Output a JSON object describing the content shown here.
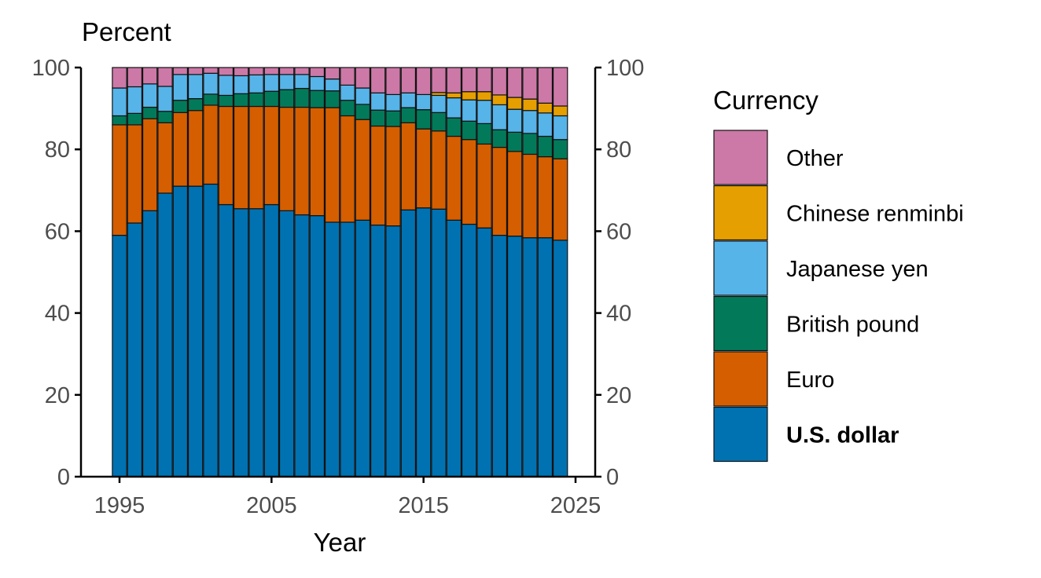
{
  "chart_data": {
    "type": "bar",
    "stacked": true,
    "title": "",
    "xlabel": "Year",
    "ylabel": "Percent",
    "ylim": [
      0,
      100
    ],
    "xlim": [
      1993,
      2027
    ],
    "x_ticks": [
      1995,
      2005,
      2015,
      2025
    ],
    "y_ticks": [
      0,
      20,
      40,
      60,
      80,
      100
    ],
    "secondary_y_axis": true,
    "grid": false,
    "legend": {
      "title": "Currency",
      "placement": "right"
    },
    "categories": [
      1995,
      1996,
      1997,
      1998,
      1999,
      2000,
      2001,
      2002,
      2003,
      2004,
      2005,
      2006,
      2007,
      2008,
      2009,
      2010,
      2011,
      2012,
      2013,
      2014,
      2015,
      2016,
      2017,
      2018,
      2019,
      2020,
      2021,
      2022,
      2023,
      2024
    ],
    "series": [
      {
        "name": "U.S. dollar",
        "color": "#0072B2",
        "bold": true,
        "values": [
          59,
          62,
          65,
          69.3,
          71,
          71,
          71.5,
          66.5,
          65.5,
          65.5,
          66.5,
          65,
          64,
          63.8,
          62.2,
          62.2,
          62.7,
          61.5,
          61.3,
          65.2,
          65.7,
          65.4,
          62.7,
          61.7,
          60.8,
          59,
          58.8,
          58.4,
          58.4,
          57.8
        ]
      },
      {
        "name": "Euro",
        "color": "#D55E00",
        "values": [
          27,
          24,
          22.5,
          17.2,
          18,
          18.5,
          19.3,
          24,
          25,
          25,
          24,
          25.3,
          26.3,
          26.4,
          28,
          26,
          24.6,
          24.2,
          24.3,
          21.3,
          19.3,
          19.1,
          20.5,
          20.7,
          20.5,
          21.5,
          20.7,
          20.4,
          19.8,
          19.9
        ]
      },
      {
        "name": "British pound",
        "color": "#027A5A",
        "values": [
          2.2,
          2.8,
          2.8,
          2.8,
          3,
          2.9,
          2.7,
          2.7,
          3.1,
          3.3,
          3.7,
          4.3,
          4.6,
          4.2,
          4.1,
          3.8,
          3.7,
          3.9,
          3.8,
          3.7,
          4.7,
          4.5,
          4.5,
          4.5,
          5,
          4.3,
          4.7,
          5.1,
          5,
          4.7
        ]
      },
      {
        "name": "Japanese yen",
        "color": "#56B4E9",
        "values": [
          6.8,
          6.5,
          5.7,
          6.1,
          6.3,
          5.9,
          5.1,
          4.9,
          4.4,
          4.4,
          4.1,
          3.7,
          3.4,
          3.4,
          2.9,
          3.7,
          4,
          4.2,
          4,
          3.6,
          3.7,
          4.2,
          4.9,
          5.2,
          5.7,
          6.1,
          5.6,
          5.6,
          5.7,
          5.8
        ]
      },
      {
        "name": "Chinese renminbi",
        "color": "#E69F00",
        "values": [
          0,
          0,
          0,
          0,
          0,
          0,
          0,
          0,
          0,
          0,
          0,
          0,
          0,
          0,
          0,
          0,
          0,
          0,
          0,
          0,
          0,
          0.7,
          1.2,
          2,
          2.1,
          2.4,
          2.9,
          2.8,
          2.4,
          2.4
        ]
      },
      {
        "name": "Other",
        "color": "#CC79A7",
        "values": [
          5,
          4.7,
          4,
          4.6,
          1.7,
          1.7,
          1.4,
          1.9,
          2,
          1.8,
          1.7,
          1.7,
          1.7,
          2.2,
          2.8,
          4.3,
          5,
          6.2,
          6.6,
          6.2,
          6.6,
          6.1,
          6.2,
          5.9,
          5.9,
          6.7,
          7.3,
          7.7,
          8.7,
          9.4
        ]
      }
    ]
  }
}
